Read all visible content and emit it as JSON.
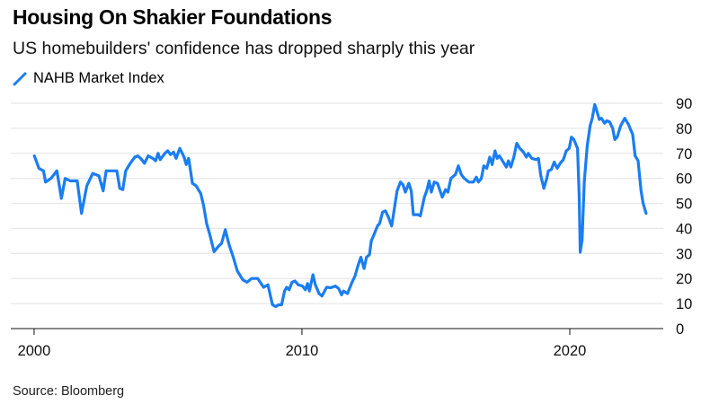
{
  "header": {
    "title": "Housing On Shakier Foundations",
    "subtitle": "US homebuilders' confidence has dropped sharply this year"
  },
  "footer": {
    "source": "Source: Bloomberg"
  },
  "chart_data": {
    "type": "line",
    "title": "Housing On Shakier Foundations",
    "subtitle": "US homebuilders' confidence has dropped sharply this year",
    "xlabel": "",
    "ylabel": "",
    "xlim": [
      1999.13,
      2023.49
    ],
    "ylim": [
      0,
      90
    ],
    "x_ticks": [
      2000,
      2010,
      2020
    ],
    "x_tick_labels": [
      "2000",
      "2010",
      "2020"
    ],
    "y_ticks": [
      0,
      10,
      20,
      30,
      40,
      50,
      60,
      70,
      80,
      90
    ],
    "y_tick_labels": [
      "0",
      "10",
      "20",
      "30",
      "40",
      "50",
      "60",
      "70",
      "80",
      "90"
    ],
    "y_axis_side": "right",
    "grid": "horizontal",
    "legend_position": "top-left",
    "source": "Source: Bloomberg",
    "series": [
      {
        "name": "NAHB Market Index",
        "color": "#1a7df2",
        "points": [
          [
            2000.01,
            69
          ],
          [
            2000.18,
            64
          ],
          [
            2000.35,
            63
          ],
          [
            2000.43,
            58.5
          ],
          [
            2000.63,
            60
          ],
          [
            2000.85,
            63
          ],
          [
            2001.02,
            52
          ],
          [
            2001.16,
            60
          ],
          [
            2001.35,
            59
          ],
          [
            2001.61,
            59
          ],
          [
            2001.77,
            46
          ],
          [
            2001.97,
            57
          ],
          [
            2002.19,
            62
          ],
          [
            2002.42,
            61
          ],
          [
            2002.58,
            55
          ],
          [
            2002.69,
            63
          ],
          [
            2002.98,
            63
          ],
          [
            2003.09,
            63
          ],
          [
            2003.2,
            56
          ],
          [
            2003.31,
            55.5
          ],
          [
            2003.42,
            63
          ],
          [
            2003.59,
            66
          ],
          [
            2003.76,
            68.5
          ],
          [
            2003.87,
            69
          ],
          [
            2003.98,
            68
          ],
          [
            2004.12,
            66
          ],
          [
            2004.26,
            69
          ],
          [
            2004.43,
            68
          ],
          [
            2004.54,
            67
          ],
          [
            2004.63,
            70
          ],
          [
            2004.71,
            67.5
          ],
          [
            2004.88,
            70
          ],
          [
            2004.99,
            71
          ],
          [
            2005.1,
            69.5
          ],
          [
            2005.21,
            70.5
          ],
          [
            2005.3,
            68
          ],
          [
            2005.44,
            72
          ],
          [
            2005.6,
            68.5
          ],
          [
            2005.68,
            65.5
          ],
          [
            2005.77,
            68
          ],
          [
            2005.91,
            58
          ],
          [
            2006.05,
            57
          ],
          [
            2006.22,
            54
          ],
          [
            2006.33,
            49
          ],
          [
            2006.44,
            42
          ],
          [
            2006.55,
            38
          ],
          [
            2006.72,
            30.7
          ],
          [
            2006.89,
            33
          ],
          [
            2007.0,
            34
          ],
          [
            2007.14,
            39.5
          ],
          [
            2007.28,
            33.5
          ],
          [
            2007.45,
            28
          ],
          [
            2007.59,
            23
          ],
          [
            2007.79,
            19.5
          ],
          [
            2007.95,
            18.5
          ],
          [
            2008.12,
            20
          ],
          [
            2008.35,
            20
          ],
          [
            2008.57,
            16.5
          ],
          [
            2008.73,
            17.5
          ],
          [
            2008.9,
            9.5
          ],
          [
            2009.02,
            8.8
          ],
          [
            2009.13,
            9.5
          ],
          [
            2009.24,
            9.5
          ],
          [
            2009.35,
            15
          ],
          [
            2009.43,
            16.5
          ],
          [
            2009.52,
            15.5
          ],
          [
            2009.63,
            18.5
          ],
          [
            2009.74,
            19
          ],
          [
            2009.86,
            17.5
          ],
          [
            2010.02,
            17
          ],
          [
            2010.13,
            15.5
          ],
          [
            2010.21,
            18
          ],
          [
            2010.28,
            15
          ],
          [
            2010.41,
            21.5
          ],
          [
            2010.5,
            17.5
          ],
          [
            2010.64,
            14
          ],
          [
            2010.75,
            13
          ],
          [
            2010.92,
            16.5
          ],
          [
            2011.08,
            16.3
          ],
          [
            2011.25,
            17
          ],
          [
            2011.37,
            16
          ],
          [
            2011.48,
            13.5
          ],
          [
            2011.55,
            15
          ],
          [
            2011.7,
            14
          ],
          [
            2011.87,
            18.5
          ],
          [
            2011.98,
            21
          ],
          [
            2012.09,
            25
          ],
          [
            2012.2,
            28.5
          ],
          [
            2012.32,
            24
          ],
          [
            2012.41,
            28.5
          ],
          [
            2012.52,
            29.5
          ],
          [
            2012.59,
            35
          ],
          [
            2012.71,
            38
          ],
          [
            2012.82,
            41
          ],
          [
            2012.9,
            42
          ],
          [
            2013.01,
            46.5
          ],
          [
            2013.12,
            47
          ],
          [
            2013.23,
            44.5
          ],
          [
            2013.35,
            41
          ],
          [
            2013.43,
            46.5
          ],
          [
            2013.55,
            55
          ],
          [
            2013.68,
            58.5
          ],
          [
            2013.77,
            57.5
          ],
          [
            2013.86,
            54.5
          ],
          [
            2013.99,
            58
          ],
          [
            2014.08,
            55
          ],
          [
            2014.16,
            45.5
          ],
          [
            2014.33,
            45.5
          ],
          [
            2014.42,
            45
          ],
          [
            2014.57,
            52.5
          ],
          [
            2014.66,
            55
          ],
          [
            2014.75,
            59
          ],
          [
            2014.83,
            54.5
          ],
          [
            2014.94,
            58.5
          ],
          [
            2015.06,
            58
          ],
          [
            2015.24,
            52.5
          ],
          [
            2015.36,
            55.5
          ],
          [
            2015.45,
            54.5
          ],
          [
            2015.56,
            60
          ],
          [
            2015.67,
            61
          ],
          [
            2015.73,
            61.5
          ],
          [
            2015.84,
            65
          ],
          [
            2015.95,
            61.5
          ],
          [
            2016.06,
            60
          ],
          [
            2016.23,
            58.5
          ],
          [
            2016.4,
            58.5
          ],
          [
            2016.51,
            60.5
          ],
          [
            2016.59,
            58.5
          ],
          [
            2016.7,
            60
          ],
          [
            2016.79,
            65
          ],
          [
            2016.9,
            64
          ],
          [
            2017.01,
            68.5
          ],
          [
            2017.1,
            65.5
          ],
          [
            2017.21,
            71
          ],
          [
            2017.29,
            68
          ],
          [
            2017.37,
            69
          ],
          [
            2017.46,
            67.5
          ],
          [
            2017.63,
            64.5
          ],
          [
            2017.71,
            67
          ],
          [
            2017.8,
            64.5
          ],
          [
            2017.91,
            68.5
          ],
          [
            2018.02,
            74
          ],
          [
            2018.13,
            72
          ],
          [
            2018.27,
            70.5
          ],
          [
            2018.38,
            68.5
          ],
          [
            2018.45,
            70
          ],
          [
            2018.58,
            68
          ],
          [
            2018.75,
            67.5
          ],
          [
            2018.83,
            68
          ],
          [
            2018.92,
            61
          ],
          [
            2019.03,
            56
          ],
          [
            2019.14,
            60
          ],
          [
            2019.2,
            63
          ],
          [
            2019.31,
            63.5
          ],
          [
            2019.42,
            66.5
          ],
          [
            2019.53,
            64
          ],
          [
            2019.64,
            66
          ],
          [
            2019.76,
            67.5
          ],
          [
            2019.87,
            71
          ],
          [
            2019.98,
            72
          ],
          [
            2020.06,
            76.5
          ],
          [
            2020.15,
            75.5
          ],
          [
            2020.29,
            72
          ],
          [
            2020.35,
            53.5
          ],
          [
            2020.39,
            30.5
          ],
          [
            2020.46,
            35.5
          ],
          [
            2020.54,
            58.5
          ],
          [
            2020.65,
            73
          ],
          [
            2020.76,
            81
          ],
          [
            2020.84,
            84
          ],
          [
            2020.93,
            89.5
          ],
          [
            2020.98,
            88
          ],
          [
            2021.1,
            83.5
          ],
          [
            2021.18,
            84
          ],
          [
            2021.3,
            82
          ],
          [
            2021.38,
            83
          ],
          [
            2021.49,
            82.5
          ],
          [
            2021.6,
            80
          ],
          [
            2021.68,
            75.5
          ],
          [
            2021.77,
            76.5
          ],
          [
            2021.9,
            81
          ],
          [
            2022.05,
            84
          ],
          [
            2022.19,
            81.5
          ],
          [
            2022.35,
            77.5
          ],
          [
            2022.44,
            69
          ],
          [
            2022.55,
            67
          ],
          [
            2022.66,
            55
          ],
          [
            2022.74,
            50
          ],
          [
            2022.85,
            46
          ]
        ]
      }
    ]
  }
}
